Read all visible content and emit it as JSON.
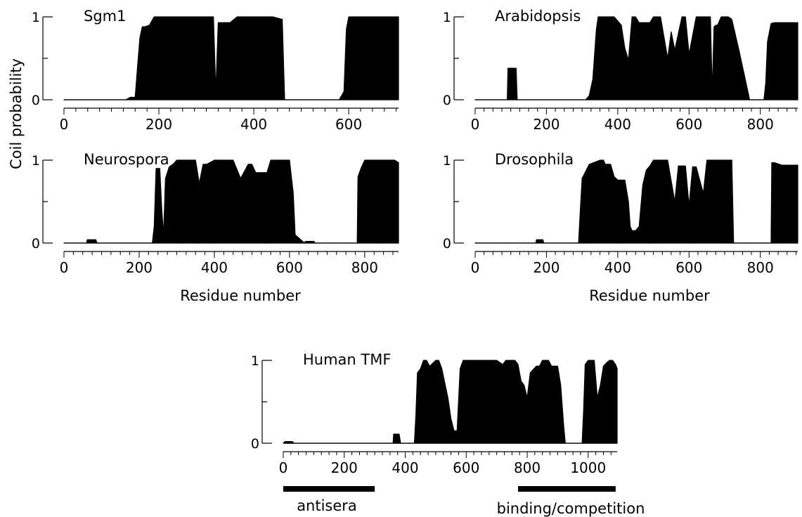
{
  "figure": {
    "ylabel": "Coil probability",
    "xlabel": "Residue number",
    "annotations": [
      {
        "label": "antisera",
        "from": 0,
        "to": 300
      },
      {
        "label": "binding/competition",
        "from": 770,
        "to": 1090
      }
    ],
    "colors": {
      "fill": "#000000",
      "axis": "#000000",
      "background": "#ffffff"
    }
  },
  "chart_data": [
    {
      "type": "area",
      "title": "Sgm1",
      "ylabel": "Coil probability",
      "xlim": [
        0,
        705
      ],
      "ylim": [
        0,
        1
      ],
      "xticks": [
        0,
        200,
        400,
        600
      ],
      "minor_step": 25,
      "yticks": [
        0,
        1
      ],
      "x": [
        0,
        130,
        140,
        150,
        155,
        160,
        165,
        170,
        180,
        190,
        200,
        250,
        300,
        315,
        320,
        325,
        335,
        350,
        365,
        380,
        400,
        440,
        460,
        465,
        580,
        590,
        595,
        600,
        620,
        700,
        705
      ],
      "y": [
        0,
        0,
        0.03,
        0.03,
        0.4,
        0.75,
        0.88,
        0.88,
        0.9,
        1.0,
        1.0,
        1.0,
        1.0,
        1.0,
        0.1,
        0.93,
        0.93,
        0.93,
        1.0,
        1.0,
        1.0,
        1.0,
        0.97,
        0,
        0,
        0.1,
        0.85,
        1.0,
        1.0,
        1.0,
        1.0
      ]
    },
    {
      "type": "area",
      "title": "Arabidopsis",
      "ylabel": "",
      "xlim": [
        0,
        905
      ],
      "ylim": [
        0,
        1
      ],
      "xticks": [
        0,
        200,
        400,
        600,
        800
      ],
      "minor_step": 25,
      "yticks": [
        0,
        1
      ],
      "x": [
        0,
        90,
        92,
        115,
        118,
        310,
        320,
        330,
        340,
        345,
        390,
        400,
        410,
        420,
        430,
        440,
        450,
        460,
        470,
        490,
        500,
        520,
        540,
        550,
        560,
        580,
        590,
        600,
        620,
        630,
        640,
        650,
        660,
        665,
        670,
        675,
        680,
        690,
        700,
        710,
        720,
        740,
        760,
        770,
        810,
        815,
        820,
        830,
        840,
        860,
        880,
        905
      ],
      "y": [
        0,
        0,
        0.38,
        0.38,
        0,
        0,
        0.05,
        0.25,
        0.85,
        1.0,
        1.0,
        0.95,
        0.9,
        0.62,
        0.48,
        1.0,
        1.0,
        0.93,
        0.93,
        0.93,
        1.0,
        1.0,
        0.5,
        0.82,
        0.6,
        1.0,
        1.0,
        0.55,
        1.0,
        1.0,
        1.0,
        1.0,
        1.0,
        0.1,
        0.88,
        0.9,
        0.9,
        1.0,
        1.0,
        1.0,
        0.97,
        0.6,
        0.2,
        0,
        0,
        0.2,
        0.7,
        0.92,
        0.93,
        0.93,
        0.93,
        0.93
      ]
    },
    {
      "type": "area",
      "title": "Neurospora",
      "ylabel": "",
      "xlim": [
        0,
        890
      ],
      "ylim": [
        0,
        1
      ],
      "xticks": [
        0,
        200,
        400,
        600,
        800
      ],
      "minor_step": 25,
      "yticks": [
        0,
        1
      ],
      "x": [
        0,
        60,
        62,
        85,
        88,
        235,
        240,
        245,
        255,
        260,
        265,
        270,
        280,
        290,
        300,
        310,
        350,
        360,
        370,
        380,
        400,
        430,
        450,
        470,
        490,
        500,
        510,
        540,
        550,
        560,
        580,
        600,
        610,
        615,
        640,
        642,
        665,
        668,
        780,
        782,
        790,
        800,
        850,
        880,
        890
      ],
      "y": [
        0,
        0,
        0.04,
        0.04,
        0,
        0,
        0.2,
        0.9,
        0.9,
        0.42,
        0.1,
        0.78,
        0.92,
        0.95,
        1.0,
        1.0,
        1.0,
        0.72,
        0.95,
        0.95,
        1.0,
        1.0,
        1.0,
        0.78,
        0.95,
        0.95,
        0.85,
        0.85,
        1.0,
        1.0,
        1.0,
        1.0,
        0.6,
        0.1,
        0,
        0.02,
        0.02,
        0,
        0,
        0.8,
        0.9,
        1.0,
        1.0,
        1.0,
        0.97
      ]
    },
    {
      "type": "area",
      "title": "Drosophila",
      "ylabel": "",
      "xlim": [
        0,
        905
      ],
      "ylim": [
        0,
        1
      ],
      "xticks": [
        0,
        200,
        400,
        600,
        800
      ],
      "minor_step": 25,
      "yticks": [
        0,
        1
      ],
      "x": [
        0,
        170,
        172,
        190,
        193,
        290,
        295,
        300,
        320,
        350,
        360,
        365,
        380,
        390,
        400,
        410,
        420,
        430,
        435,
        440,
        450,
        460,
        470,
        480,
        490,
        500,
        540,
        560,
        570,
        580,
        590,
        600,
        610,
        620,
        640,
        650,
        680,
        720,
        725,
        830,
        832,
        840,
        860,
        880,
        905
      ],
      "y": [
        0,
        0,
        0.04,
        0.04,
        0,
        0,
        0.4,
        0.78,
        0.95,
        1.0,
        1.0,
        0.95,
        0.95,
        0.8,
        0.76,
        0.76,
        0.76,
        0.5,
        0.2,
        0.15,
        0.15,
        0.2,
        0.7,
        0.88,
        0.93,
        1.0,
        1.0,
        0.5,
        0.93,
        0.93,
        0.93,
        0.45,
        0.92,
        0.92,
        0.6,
        1.0,
        1.0,
        1.0,
        0,
        0,
        0.97,
        0.97,
        0.94,
        0.94,
        0.94
      ]
    },
    {
      "type": "area",
      "title": "Human TMF",
      "ylabel": "",
      "xlim": [
        0,
        1095
      ],
      "ylim": [
        0,
        1
      ],
      "xticks": [
        0,
        200,
        400,
        600,
        800,
        1000
      ],
      "minor_step": 25,
      "yticks": [
        0,
        1
      ],
      "x": [
        0,
        5,
        30,
        35,
        360,
        362,
        380,
        385,
        430,
        435,
        440,
        450,
        460,
        470,
        480,
        500,
        510,
        520,
        540,
        550,
        560,
        570,
        580,
        590,
        600,
        650,
        700,
        720,
        730,
        740,
        760,
        770,
        780,
        790,
        800,
        810,
        830,
        840,
        850,
        870,
        880,
        900,
        910,
        920,
        925,
        980,
        985,
        990,
        1000,
        1020,
        1030,
        1040,
        1050,
        1060,
        1070,
        1080,
        1090,
        1095
      ],
      "y": [
        0,
        0.02,
        0.02,
        0,
        0,
        0.11,
        0.11,
        0,
        0,
        0.35,
        0.85,
        0.9,
        1.0,
        1.0,
        0.93,
        1.0,
        1.0,
        0.9,
        0.55,
        0.3,
        0.15,
        0.15,
        0.9,
        1.0,
        1.0,
        1.0,
        1.0,
        0.95,
        1.0,
        1.0,
        1.0,
        0.95,
        0.75,
        0.7,
        0.55,
        0.85,
        0.93,
        0.93,
        1.0,
        1.0,
        0.93,
        0.93,
        0.7,
        0.2,
        0,
        0,
        0.4,
        0.95,
        1.0,
        1.0,
        0.55,
        0.7,
        0.93,
        0.97,
        1.0,
        1.0,
        0.95,
        0.9
      ]
    }
  ]
}
